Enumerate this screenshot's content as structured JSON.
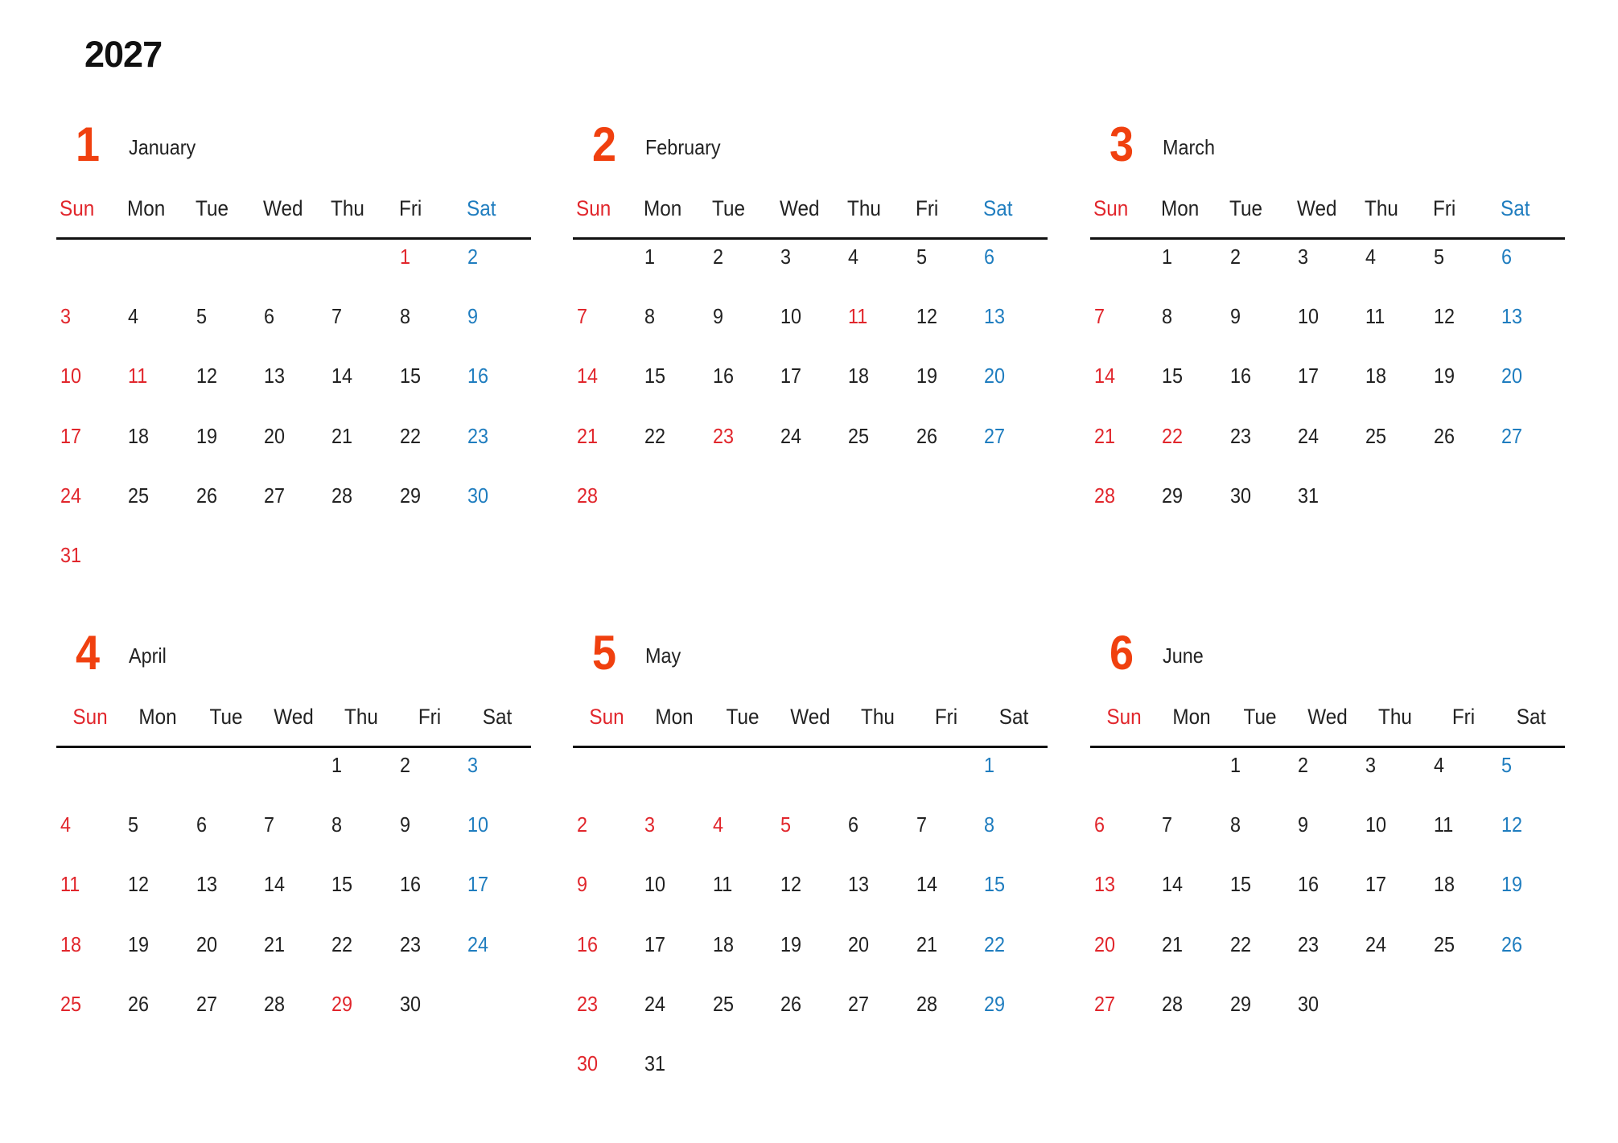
{
  "year": "2027",
  "colors": {
    "month_number": "#f0400f",
    "sunday": "#e1262c",
    "holiday": "#e1262c",
    "saturday": "#1f7dbf",
    "weekday": "#222222"
  },
  "weekdays": [
    "Sun",
    "Mon",
    "Tue",
    "Wed",
    "Thu",
    "Fri",
    "Sat"
  ],
  "months": [
    {
      "number": "1",
      "name": "January",
      "sat_header_colored": true,
      "holidays": [
        1,
        11
      ],
      "weeks": [
        [
          null,
          null,
          null,
          null,
          null,
          1,
          2
        ],
        [
          3,
          4,
          5,
          6,
          7,
          8,
          9
        ],
        [
          10,
          11,
          12,
          13,
          14,
          15,
          16
        ],
        [
          17,
          18,
          19,
          20,
          21,
          22,
          23
        ],
        [
          24,
          25,
          26,
          27,
          28,
          29,
          30
        ],
        [
          31,
          null,
          null,
          null,
          null,
          null,
          null
        ]
      ]
    },
    {
      "number": "2",
      "name": "February",
      "sat_header_colored": true,
      "holidays": [
        11,
        23
      ],
      "weeks": [
        [
          null,
          1,
          2,
          3,
          4,
          5,
          6
        ],
        [
          7,
          8,
          9,
          10,
          11,
          12,
          13
        ],
        [
          14,
          15,
          16,
          17,
          18,
          19,
          20
        ],
        [
          21,
          22,
          23,
          24,
          25,
          26,
          27
        ],
        [
          28,
          null,
          null,
          null,
          null,
          null,
          null
        ]
      ]
    },
    {
      "number": "3",
      "name": "March",
      "sat_header_colored": true,
      "holidays": [
        22
      ],
      "weeks": [
        [
          null,
          1,
          2,
          3,
          4,
          5,
          6
        ],
        [
          7,
          8,
          9,
          10,
          11,
          12,
          13
        ],
        [
          14,
          15,
          16,
          17,
          18,
          19,
          20
        ],
        [
          21,
          22,
          23,
          24,
          25,
          26,
          27
        ],
        [
          28,
          29,
          30,
          31,
          null,
          null,
          null
        ]
      ]
    },
    {
      "number": "4",
      "name": "April",
      "sat_header_colored": false,
      "holidays": [
        29
      ],
      "weeks": [
        [
          null,
          null,
          null,
          null,
          1,
          2,
          3
        ],
        [
          4,
          5,
          6,
          7,
          8,
          9,
          10
        ],
        [
          11,
          12,
          13,
          14,
          15,
          16,
          17
        ],
        [
          18,
          19,
          20,
          21,
          22,
          23,
          24
        ],
        [
          25,
          26,
          27,
          28,
          29,
          30,
          null
        ]
      ]
    },
    {
      "number": "5",
      "name": "May",
      "sat_header_colored": false,
      "holidays": [
        3,
        4,
        5
      ],
      "weeks": [
        [
          null,
          null,
          null,
          null,
          null,
          null,
          1
        ],
        [
          2,
          3,
          4,
          5,
          6,
          7,
          8
        ],
        [
          9,
          10,
          11,
          12,
          13,
          14,
          15
        ],
        [
          16,
          17,
          18,
          19,
          20,
          21,
          22
        ],
        [
          23,
          24,
          25,
          26,
          27,
          28,
          29
        ],
        [
          30,
          31,
          null,
          null,
          null,
          null,
          null
        ]
      ]
    },
    {
      "number": "6",
      "name": "June",
      "sat_header_colored": false,
      "holidays": [],
      "weeks": [
        [
          null,
          null,
          1,
          2,
          3,
          4,
          5
        ],
        [
          6,
          7,
          8,
          9,
          10,
          11,
          12
        ],
        [
          13,
          14,
          15,
          16,
          17,
          18,
          19
        ],
        [
          20,
          21,
          22,
          23,
          24,
          25,
          26
        ],
        [
          27,
          28,
          29,
          30,
          null,
          null,
          null
        ]
      ]
    }
  ]
}
